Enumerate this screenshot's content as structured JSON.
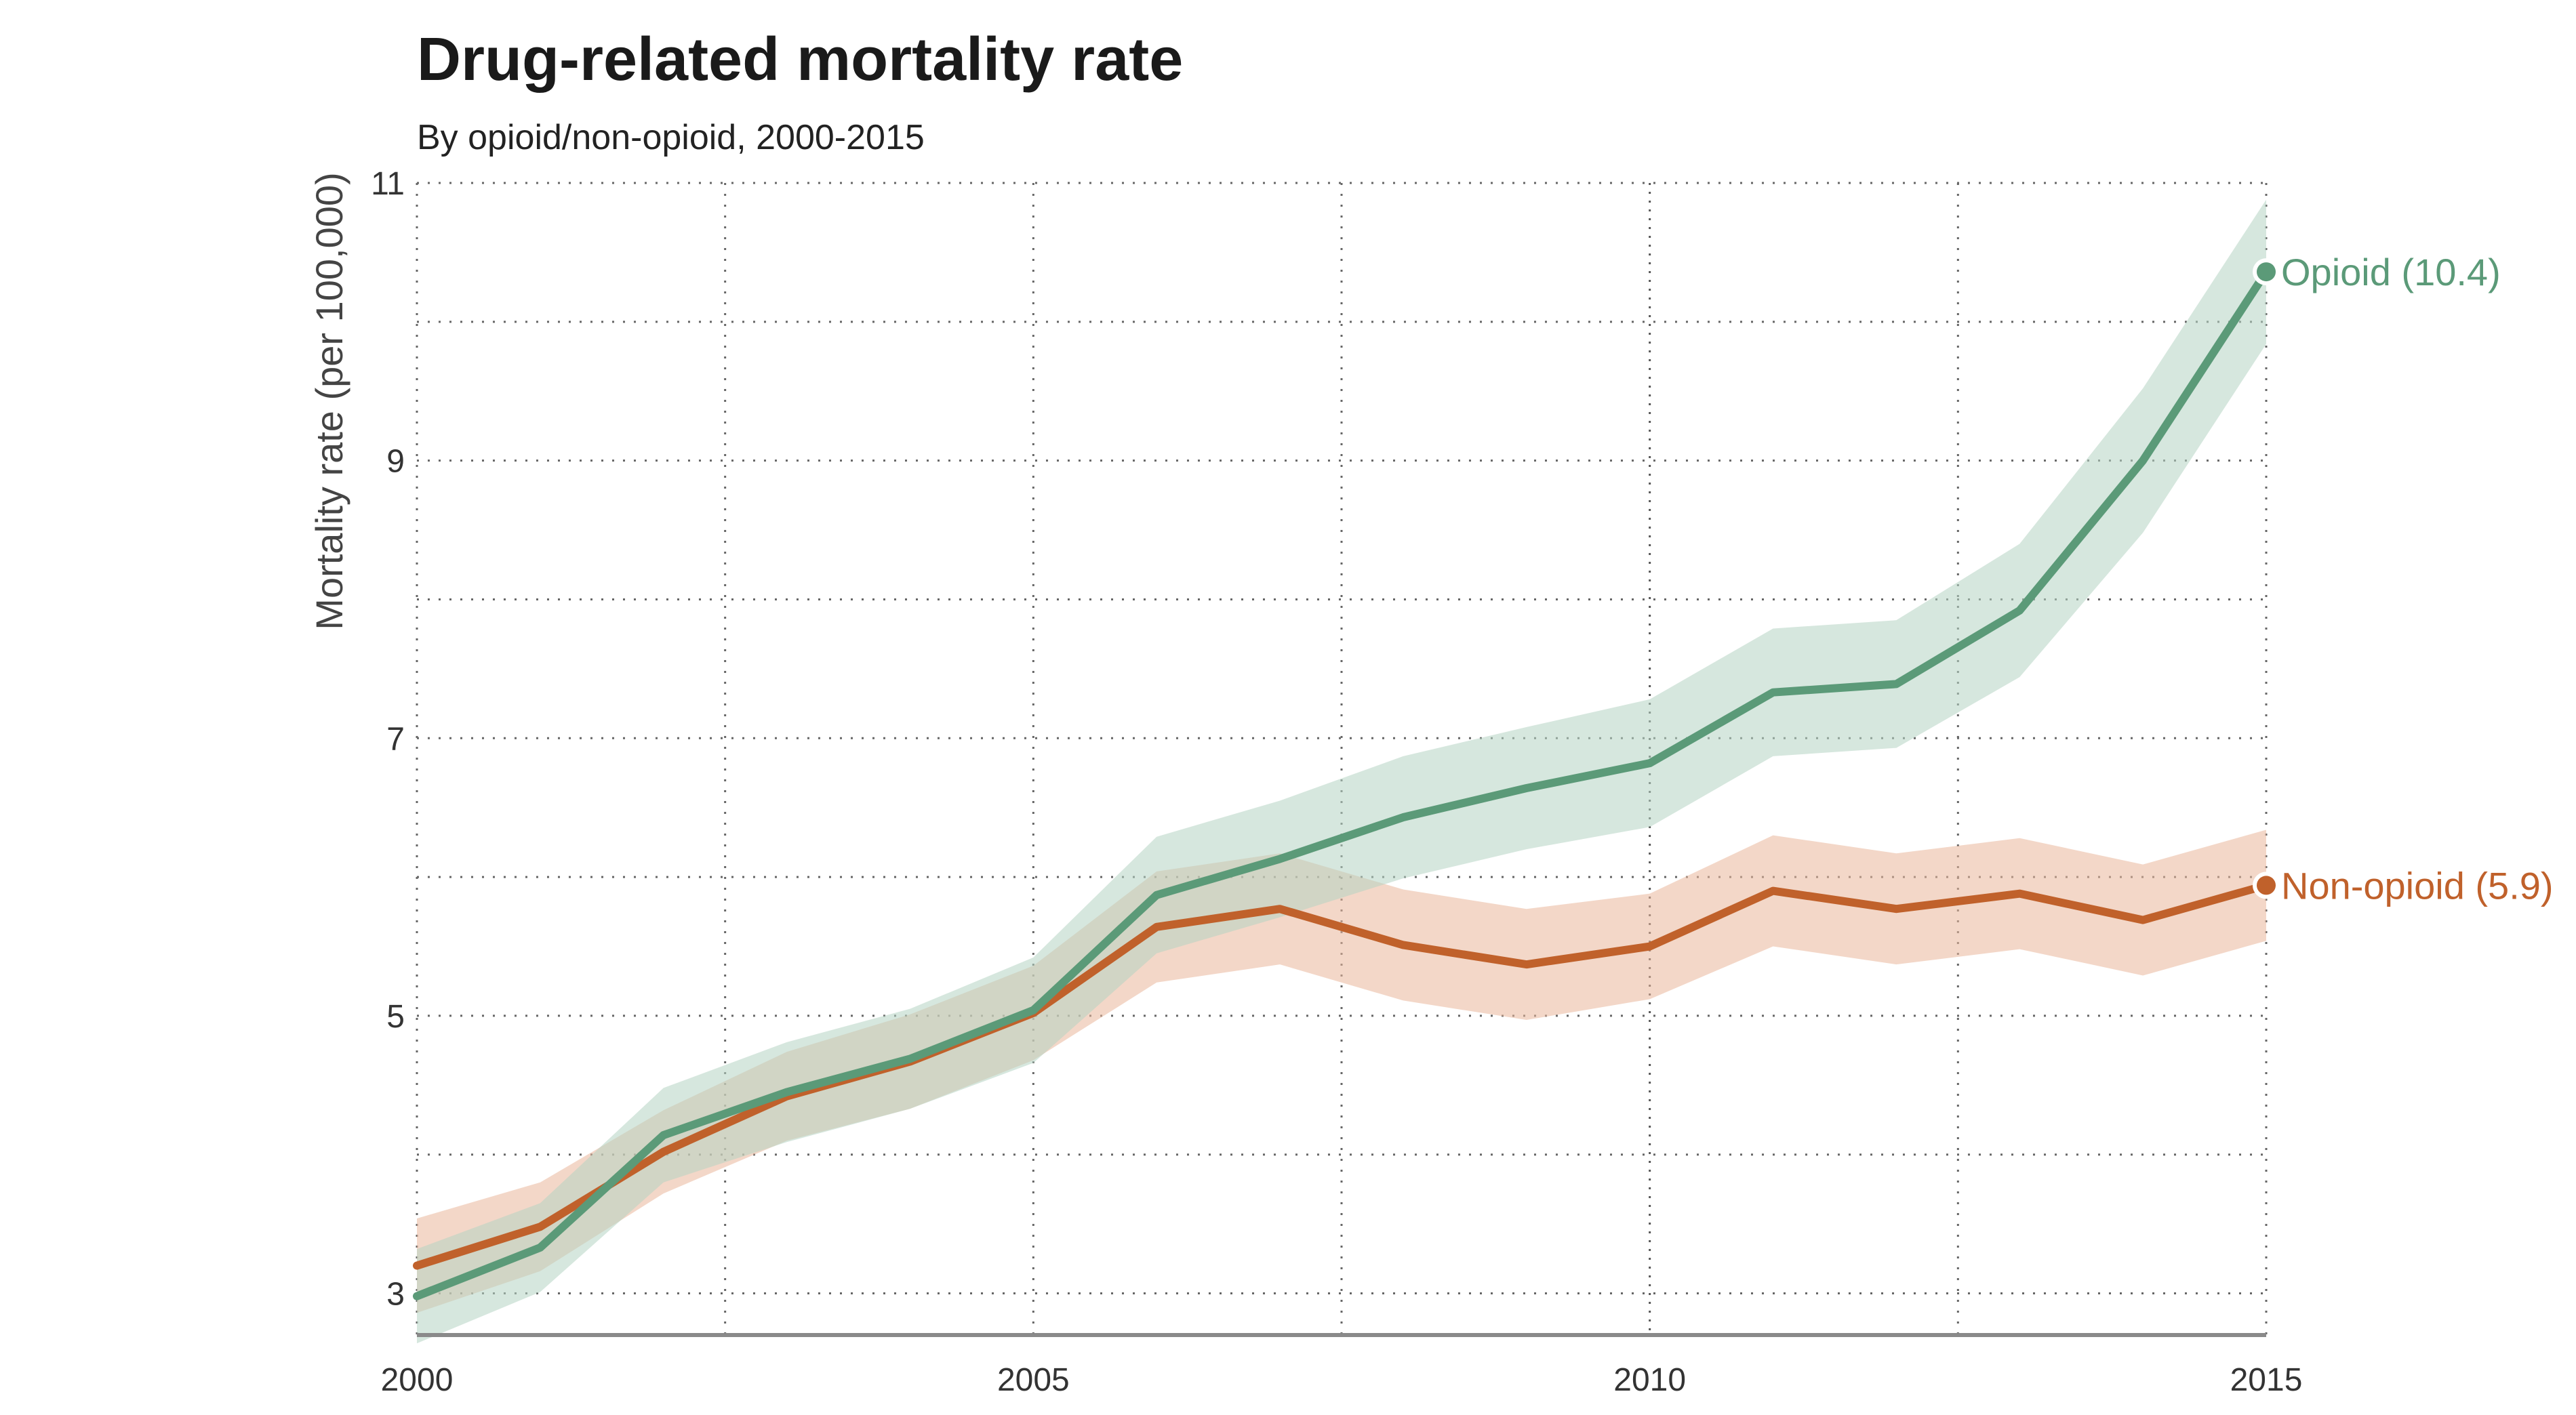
{
  "chart_data": {
    "type": "line",
    "title": "Drug-related mortality rate",
    "subtitle": "By opioid/non-opioid, 2000-2015",
    "xlabel": "",
    "ylabel": "Mortality rate (per 100,000)",
    "xlim": [
      2000,
      2015
    ],
    "ylim": [
      2.7,
      11
    ],
    "x_ticks": [
      2000,
      2005,
      2010,
      2015
    ],
    "y_ticks": [
      3,
      5,
      7,
      9,
      11
    ],
    "grid": true,
    "x": [
      2000,
      2001,
      2002,
      2003,
      2004,
      2005,
      2006,
      2007,
      2008,
      2009,
      2010,
      2011,
      2012,
      2013,
      2014,
      2015
    ],
    "series": [
      {
        "name": "Non-opioid",
        "end_label": "Non-opioid (5.9)",
        "color": "#c0612b",
        "band_color": "#e9b79a",
        "values": [
          3.2,
          3.48,
          4.02,
          4.42,
          4.67,
          5.02,
          5.64,
          5.77,
          5.51,
          5.37,
          5.5,
          5.9,
          5.77,
          5.88,
          5.69,
          5.94
        ],
        "lower": [
          2.86,
          3.16,
          3.72,
          4.1,
          4.33,
          4.68,
          5.24,
          5.37,
          5.11,
          4.97,
          5.12,
          5.5,
          5.37,
          5.48,
          5.29,
          5.54
        ],
        "upper": [
          3.54,
          3.8,
          4.32,
          4.74,
          5.01,
          5.36,
          6.04,
          6.17,
          5.91,
          5.77,
          5.88,
          6.3,
          6.17,
          6.28,
          6.09,
          6.34
        ]
      },
      {
        "name": "Opioid",
        "end_label": "Opioid (10.4)",
        "color": "#5b9a78",
        "band_color": "#b5d3c2",
        "values": [
          2.98,
          3.33,
          4.14,
          4.45,
          4.69,
          5.04,
          5.87,
          6.13,
          6.43,
          6.64,
          6.82,
          7.33,
          7.39,
          7.92,
          9.0,
          10.36
        ],
        "lower": [
          2.64,
          3.01,
          3.8,
          4.09,
          4.33,
          4.66,
          5.45,
          5.71,
          5.99,
          6.2,
          6.36,
          6.87,
          6.93,
          7.44,
          8.48,
          9.84
        ],
        "upper": [
          3.32,
          3.65,
          4.48,
          4.81,
          5.05,
          5.42,
          6.29,
          6.55,
          6.87,
          7.08,
          7.28,
          7.79,
          7.85,
          8.4,
          9.52,
          10.88
        ]
      }
    ]
  }
}
